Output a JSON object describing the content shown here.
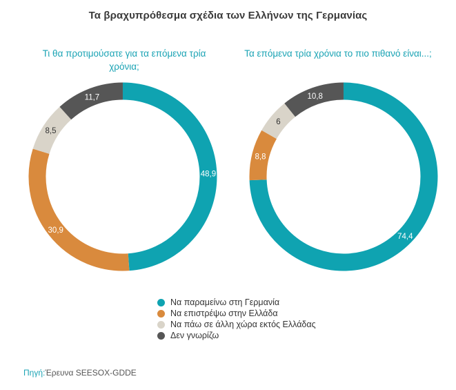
{
  "title": "Τα βραχυπρόθεσμα σχέδια των Ελλήνων της Γερμανίας",
  "source": {
    "label": "Πηγή:",
    "text": "Έρευνα SEESOX-GDDE"
  },
  "colors": {
    "teal": "#0fa3b1",
    "orange": "#d98a3d",
    "beige": "#d9d4c9",
    "dark": "#565656",
    "subtitle": "#1aa3b4"
  },
  "legend": [
    {
      "label": "Να παραμείνω στη Γερμανία",
      "color": "#0fa3b1"
    },
    {
      "label": "Να επιστρέψω στην Ελλάδα",
      "color": "#d98a3d"
    },
    {
      "label": "Να πάω σε άλλη χώρα εκτός Ελλάδας",
      "color": "#d9d4c9"
    },
    {
      "label": "Δεν γνωρίζω",
      "color": "#565656"
    }
  ],
  "chart_data": [
    {
      "type": "pie",
      "subtitle": "Τι θα προτιμούσατε για τα επόμενα τρία χρόνια;",
      "slices": [
        {
          "category": "Να παραμείνω στη Γερμανία",
          "value": 48.9,
          "label": "48,9",
          "color": "#0fa3b1"
        },
        {
          "category": "Να επιστρέψω στην Ελλάδα",
          "value": 30.9,
          "label": "30,9",
          "color": "#d98a3d"
        },
        {
          "category": "Να πάω σε άλλη χώρα εκτός Ελλάδας",
          "value": 8.5,
          "label": "8,5",
          "color": "#d9d4c9"
        },
        {
          "category": "Δεν γνωρίζω",
          "value": 11.7,
          "label": "11,7",
          "color": "#565656"
        }
      ]
    },
    {
      "type": "pie",
      "subtitle": "Τα επόμενα τρία χρόνια το πιο πιθανό είναι...;",
      "slices": [
        {
          "category": "Να παραμείνω στη Γερμανία",
          "value": 74.4,
          "label": "74,4",
          "color": "#0fa3b1"
        },
        {
          "category": "Να επιστρέψω στην Ελλάδα",
          "value": 8.8,
          "label": "8,8",
          "color": "#d98a3d"
        },
        {
          "category": "Να πάω σε άλλη χώρα εκτός Ελλάδας",
          "value": 6,
          "label": "6",
          "color": "#d9d4c9"
        },
        {
          "category": "Δεν γνωρίζω",
          "value": 10.8,
          "label": "10,8",
          "color": "#565656"
        }
      ]
    }
  ]
}
